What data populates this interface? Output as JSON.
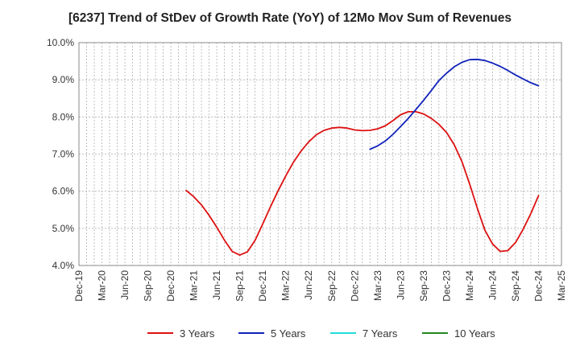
{
  "chart_data": {
    "type": "line",
    "title": "[6237]  Trend of StDev of Growth Rate (YoY) of 12Mo Mov Sum of Revenues",
    "xlabel": "",
    "ylabel": "",
    "ylim": [
      4.0,
      10.0
    ],
    "yticks": [
      "4.0%",
      "5.0%",
      "6.0%",
      "7.0%",
      "8.0%",
      "9.0%",
      "10.0%"
    ],
    "xticks": [
      "Dec-19",
      "Mar-20",
      "Jun-20",
      "Sep-20",
      "Dec-20",
      "Mar-21",
      "Jun-21",
      "Sep-21",
      "Dec-21",
      "Mar-22",
      "Jun-22",
      "Sep-22",
      "Dec-22",
      "Mar-23",
      "Jun-23",
      "Sep-23",
      "Dec-23",
      "Mar-24",
      "Jun-24",
      "Sep-24",
      "Dec-24",
      "Mar-25"
    ],
    "grid": true,
    "legend_position": "bottom",
    "series": [
      {
        "name": "3 Years",
        "color": "#dd1111",
        "start_month": 14,
        "values": [
          6.02,
          5.85,
          5.63,
          5.35,
          5.03,
          4.68,
          4.38,
          4.28,
          4.37,
          4.68,
          5.12,
          5.58,
          6.01,
          6.41,
          6.78,
          7.08,
          7.33,
          7.52,
          7.64,
          7.7,
          7.72,
          7.7,
          7.65,
          7.63,
          7.64,
          7.68,
          7.76,
          7.9,
          8.06,
          8.14,
          8.14,
          8.08,
          7.96,
          7.8,
          7.58,
          7.25,
          6.8,
          6.2,
          5.55,
          4.95,
          4.58,
          4.38,
          4.4,
          4.62,
          4.98,
          5.4,
          5.88
        ]
      },
      {
        "name": "5 Years",
        "color": "#1122bb",
        "start_month": 38,
        "values": [
          7.13,
          7.22,
          7.35,
          7.53,
          7.74,
          7.96,
          8.2,
          8.45,
          8.71,
          8.98,
          9.18,
          9.35,
          9.47,
          9.54,
          9.55,
          9.52,
          9.45,
          9.36,
          9.25,
          9.13,
          9.02,
          8.92,
          8.84
        ]
      },
      {
        "name": "7 Years",
        "color": "#22dddd",
        "start_month": 0,
        "values": []
      },
      {
        "name": "10 Years",
        "color": "#228822",
        "start_month": 0,
        "values": []
      }
    ]
  }
}
